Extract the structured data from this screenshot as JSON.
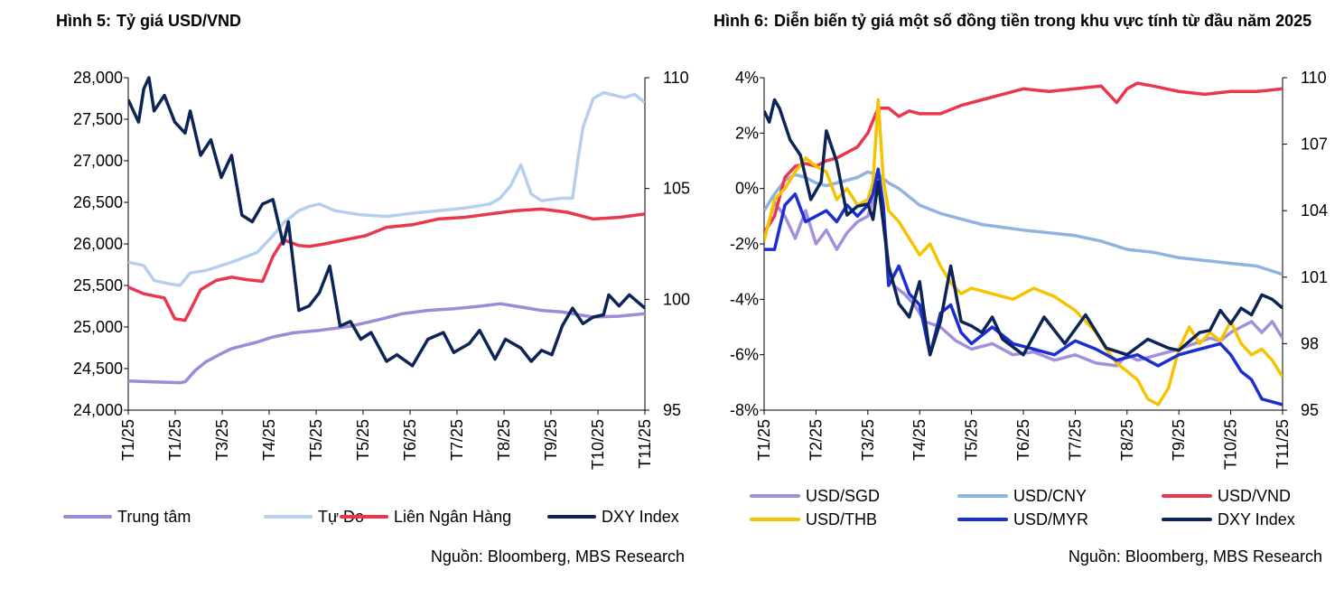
{
  "figure1": {
    "label": "Hình 5:",
    "title": "Tỷ giá USD/VND",
    "source": "Nguồn: Bloomberg, MBS Research"
  },
  "figure2": {
    "label": "Hình 6:",
    "title": "Diễn biến tỷ giá một số đồng tiền trong khu vực tính từ đầu năm 2025",
    "source": "Nguồn: Bloomberg, MBS Research"
  },
  "chart_data": [
    {
      "type": "line",
      "title": "Tỷ giá USD/VND",
      "ylim": [
        24000,
        28000
      ],
      "y_ticks": [
        24000,
        24500,
        25000,
        25500,
        26000,
        26500,
        27000,
        27500,
        28000
      ],
      "y_tick_labels": [
        "24,000",
        "24,500",
        "25,000",
        "25,500",
        "26,000",
        "26,500",
        "27,000",
        "27,500",
        "28,000"
      ],
      "y2lim": [
        95,
        110
      ],
      "y2_ticks": [
        95,
        100,
        105,
        110
      ],
      "y2_tick_labels": [
        "95",
        "100",
        "105",
        "110"
      ],
      "x_tick_labels": [
        "T1/25",
        "T1/25",
        "T3/25",
        "T4/25",
        "T5/25",
        "T5/25",
        "T6/25",
        "T7/25",
        "T8/25",
        "T9/25",
        "T10/25",
        "T11/25"
      ],
      "legend": "bottom",
      "series": [
        {
          "name": "Trung tâm",
          "color": "#9b8bd9",
          "axis": "left",
          "x": [
            0,
            0.05,
            0.1,
            0.11,
            0.13,
            0.15,
            0.18,
            0.2,
            0.25,
            0.28,
            0.32,
            0.37,
            0.43,
            0.48,
            0.53,
            0.58,
            0.63,
            0.68,
            0.72,
            0.76,
            0.8,
            0.84,
            0.9,
            0.95,
            1.0
          ],
          "y": [
            24350,
            24340,
            24330,
            24340,
            24480,
            24580,
            24680,
            24740,
            24820,
            24880,
            24930,
            24960,
            25010,
            25080,
            25160,
            25200,
            25220,
            25250,
            25280,
            25240,
            25200,
            25180,
            25120,
            25130,
            25160
          ]
        },
        {
          "name": "Tự Do",
          "color": "#b5cfec",
          "axis": "left",
          "x": [
            0,
            0.03,
            0.05,
            0.08,
            0.1,
            0.12,
            0.15,
            0.17,
            0.2,
            0.23,
            0.25,
            0.28,
            0.3,
            0.33,
            0.35,
            0.37,
            0.4,
            0.45,
            0.5,
            0.55,
            0.6,
            0.65,
            0.7,
            0.72,
            0.74,
            0.76,
            0.78,
            0.8,
            0.84,
            0.86,
            0.87,
            0.88,
            0.9,
            0.92,
            0.94,
            0.96,
            0.98,
            1.0
          ],
          "y": [
            25780,
            25740,
            25560,
            25520,
            25500,
            25650,
            25680,
            25720,
            25780,
            25850,
            25900,
            26100,
            26250,
            26400,
            26450,
            26480,
            26400,
            26350,
            26330,
            26370,
            26400,
            26430,
            26480,
            26550,
            26700,
            26950,
            26600,
            26520,
            26550,
            26550,
            27000,
            27400,
            27750,
            27820,
            27790,
            27760,
            27800,
            27700
          ]
        },
        {
          "name": "Liên Ngân Hàng",
          "color": "#e8374f",
          "axis": "left",
          "x": [
            0,
            0.03,
            0.07,
            0.09,
            0.11,
            0.12,
            0.14,
            0.17,
            0.2,
            0.23,
            0.26,
            0.28,
            0.3,
            0.33,
            0.35,
            0.38,
            0.42,
            0.46,
            0.5,
            0.55,
            0.6,
            0.65,
            0.7,
            0.75,
            0.8,
            0.85,
            0.9,
            0.95,
            1.0
          ],
          "y": [
            25480,
            25400,
            25350,
            25100,
            25080,
            25200,
            25450,
            25560,
            25600,
            25570,
            25550,
            25850,
            26050,
            25980,
            25970,
            26000,
            26050,
            26100,
            26200,
            26230,
            26300,
            26320,
            26360,
            26400,
            26420,
            26380,
            26300,
            26320,
            26360
          ]
        },
        {
          "name": "DXY Index",
          "color": "#0d2456",
          "axis": "right",
          "x": [
            0,
            0.02,
            0.03,
            0.04,
            0.05,
            0.07,
            0.09,
            0.11,
            0.12,
            0.14,
            0.16,
            0.18,
            0.2,
            0.22,
            0.24,
            0.26,
            0.28,
            0.3,
            0.31,
            0.33,
            0.35,
            0.37,
            0.39,
            0.41,
            0.43,
            0.45,
            0.47,
            0.5,
            0.52,
            0.55,
            0.58,
            0.61,
            0.63,
            0.66,
            0.68,
            0.71,
            0.73,
            0.76,
            0.78,
            0.8,
            0.82,
            0.84,
            0.86,
            0.88,
            0.9,
            0.92,
            0.93,
            0.95,
            0.97,
            1.0
          ],
          "y": [
            109.0,
            108.0,
            109.5,
            110.0,
            108.5,
            109.2,
            108.0,
            107.5,
            108.5,
            106.5,
            107.2,
            105.5,
            106.5,
            103.8,
            103.5,
            104.3,
            104.5,
            102.5,
            103.5,
            99.5,
            99.7,
            100.3,
            101.5,
            98.8,
            99.0,
            98.2,
            98.5,
            97.2,
            97.5,
            97.0,
            98.2,
            98.5,
            97.6,
            98.0,
            98.6,
            97.3,
            98.2,
            97.8,
            97.2,
            97.7,
            97.5,
            98.8,
            99.6,
            98.9,
            99.2,
            99.3,
            100.2,
            99.7,
            100.2,
            99.6
          ]
        }
      ]
    },
    {
      "type": "line",
      "title": "Diễn biến tỷ giá một số đồng tiền trong khu vực tính từ đầu năm 2025",
      "ylim": [
        -8,
        4
      ],
      "y_ticks": [
        -8,
        -6,
        -4,
        -2,
        0,
        2,
        4
      ],
      "y_tick_labels": [
        "-8%",
        "-6%",
        "-4%",
        "-2%",
        "0%",
        "2%",
        "4%"
      ],
      "y2lim": [
        95,
        110
      ],
      "y2_ticks": [
        95,
        98,
        101,
        104,
        107,
        110
      ],
      "y2_tick_labels": [
        "95",
        "98",
        "101",
        "104",
        "107",
        "110"
      ],
      "x_tick_labels": [
        "T1/25",
        "T2/25",
        "T3/25",
        "T4/25",
        "T5/25",
        "T6/25",
        "T7/25",
        "T8/25",
        "T9/25",
        "T10/25",
        "T11/25"
      ],
      "legend": "bottom",
      "series": [
        {
          "name": "USD/SGD",
          "color": "#a48fdc",
          "axis": "left",
          "x": [
            0,
            0.02,
            0.04,
            0.06,
            0.08,
            0.1,
            0.12,
            0.14,
            0.16,
            0.18,
            0.2,
            0.22,
            0.23,
            0.24,
            0.25,
            0.27,
            0.29,
            0.31,
            0.34,
            0.37,
            0.4,
            0.44,
            0.48,
            0.52,
            0.56,
            0.6,
            0.64,
            0.68,
            0.7,
            0.72,
            0.76,
            0.8,
            0.83,
            0.86,
            0.88,
            0.9,
            0.92,
            0.94,
            0.96,
            0.98,
            1.0
          ],
          "y": [
            -1.8,
            -0.5,
            -1.0,
            -1.8,
            -0.8,
            -2.0,
            -1.5,
            -2.2,
            -1.6,
            -1.2,
            -1.0,
            0.2,
            -0.8,
            -2.8,
            -3.5,
            -3.8,
            -4.2,
            -4.8,
            -5.0,
            -5.5,
            -5.8,
            -5.6,
            -6.0,
            -5.9,
            -6.2,
            -6.0,
            -6.3,
            -6.4,
            -6.0,
            -6.2,
            -6.0,
            -5.8,
            -5.6,
            -5.4,
            -5.5,
            -5.2,
            -5.0,
            -4.8,
            -5.2,
            -4.8,
            -5.4
          ]
        },
        {
          "name": "USD/CNY",
          "color": "#8fb4e0",
          "axis": "left",
          "x": [
            0,
            0.02,
            0.04,
            0.06,
            0.08,
            0.1,
            0.12,
            0.14,
            0.16,
            0.18,
            0.2,
            0.22,
            0.24,
            0.26,
            0.28,
            0.3,
            0.34,
            0.38,
            0.42,
            0.46,
            0.5,
            0.55,
            0.6,
            0.65,
            0.7,
            0.75,
            0.8,
            0.85,
            0.9,
            0.95,
            1.0
          ],
          "y": [
            -0.8,
            -0.2,
            0.3,
            0.5,
            0.4,
            0.2,
            0.1,
            0.2,
            0.3,
            0.4,
            0.6,
            0.5,
            0.2,
            0.0,
            -0.3,
            -0.6,
            -0.9,
            -1.1,
            -1.3,
            -1.4,
            -1.5,
            -1.6,
            -1.7,
            -1.9,
            -2.2,
            -2.3,
            -2.5,
            -2.6,
            -2.7,
            -2.8,
            -3.1
          ]
        },
        {
          "name": "USD/VND",
          "color": "#e8374f",
          "axis": "left",
          "x": [
            0,
            0.02,
            0.04,
            0.06,
            0.08,
            0.1,
            0.12,
            0.14,
            0.16,
            0.18,
            0.2,
            0.22,
            0.24,
            0.26,
            0.28,
            0.3,
            0.34,
            0.38,
            0.42,
            0.46,
            0.5,
            0.55,
            0.6,
            0.65,
            0.68,
            0.7,
            0.72,
            0.75,
            0.8,
            0.85,
            0.9,
            0.95,
            1.0
          ],
          "y": [
            -1.6,
            -1.0,
            0.4,
            0.8,
            0.9,
            0.8,
            1.0,
            1.1,
            1.3,
            1.5,
            2.0,
            2.9,
            2.9,
            2.6,
            2.8,
            2.7,
            2.7,
            3.0,
            3.2,
            3.4,
            3.6,
            3.5,
            3.6,
            3.7,
            3.1,
            3.6,
            3.8,
            3.7,
            3.5,
            3.4,
            3.5,
            3.5,
            3.6
          ]
        },
        {
          "name": "USD/THB",
          "color": "#f5c400",
          "axis": "left",
          "x": [
            0,
            0.02,
            0.04,
            0.06,
            0.08,
            0.1,
            0.12,
            0.14,
            0.16,
            0.18,
            0.2,
            0.21,
            0.22,
            0.23,
            0.24,
            0.26,
            0.28,
            0.3,
            0.32,
            0.34,
            0.36,
            0.38,
            0.4,
            0.44,
            0.48,
            0.52,
            0.56,
            0.6,
            0.64,
            0.66,
            0.68,
            0.72,
            0.74,
            0.76,
            0.78,
            0.8,
            0.82,
            0.84,
            0.86,
            0.88,
            0.9,
            0.92,
            0.94,
            0.96,
            0.98,
            1.0
          ],
          "y": [
            -1.9,
            -0.4,
            0.0,
            0.6,
            1.1,
            0.8,
            0.6,
            -0.4,
            0.0,
            -0.6,
            -0.4,
            0.2,
            3.2,
            0.3,
            -0.8,
            -1.2,
            -1.8,
            -2.4,
            -2.0,
            -2.8,
            -3.4,
            -3.8,
            -3.6,
            -3.8,
            -4.0,
            -3.6,
            -3.9,
            -4.4,
            -5.2,
            -5.8,
            -6.3,
            -6.9,
            -7.6,
            -7.8,
            -7.2,
            -5.8,
            -5.0,
            -5.6,
            -5.2,
            -5.5,
            -4.8,
            -5.6,
            -6.0,
            -5.8,
            -6.2,
            -6.8
          ]
        },
        {
          "name": "USD/MYR",
          "color": "#1a2ed1",
          "axis": "left",
          "x": [
            0,
            0.02,
            0.04,
            0.06,
            0.08,
            0.1,
            0.12,
            0.14,
            0.16,
            0.18,
            0.2,
            0.21,
            0.22,
            0.23,
            0.24,
            0.26,
            0.28,
            0.3,
            0.32,
            0.34,
            0.36,
            0.38,
            0.4,
            0.44,
            0.48,
            0.52,
            0.56,
            0.6,
            0.64,
            0.68,
            0.72,
            0.76,
            0.8,
            0.84,
            0.88,
            0.9,
            0.92,
            0.94,
            0.96,
            0.98,
            1.0
          ],
          "y": [
            -2.2,
            -2.2,
            -0.6,
            -0.2,
            -1.2,
            -1.0,
            -0.8,
            -1.2,
            -0.6,
            -1.0,
            -0.6,
            -0.2,
            0.7,
            -0.6,
            -3.5,
            -2.8,
            -3.8,
            -4.2,
            -6.0,
            -4.5,
            -4.2,
            -5.2,
            -5.6,
            -5.0,
            -5.6,
            -5.8,
            -6.0,
            -5.5,
            -5.8,
            -6.2,
            -6.0,
            -6.4,
            -6.0,
            -5.8,
            -5.6,
            -6.0,
            -6.6,
            -6.9,
            -7.6,
            -7.7,
            -7.8
          ]
        },
        {
          "name": "DXY Index",
          "color": "#0d2456",
          "axis": "right",
          "x": [
            0,
            0.01,
            0.02,
            0.03,
            0.05,
            0.07,
            0.09,
            0.11,
            0.12,
            0.14,
            0.16,
            0.18,
            0.2,
            0.21,
            0.22,
            0.24,
            0.26,
            0.28,
            0.3,
            0.32,
            0.34,
            0.36,
            0.38,
            0.4,
            0.42,
            0.44,
            0.46,
            0.5,
            0.54,
            0.58,
            0.62,
            0.66,
            0.7,
            0.74,
            0.78,
            0.8,
            0.82,
            0.84,
            0.86,
            0.88,
            0.9,
            0.92,
            0.94,
            0.96,
            0.98,
            1.0
          ],
          "y": [
            108.5,
            108.0,
            109.0,
            108.6,
            107.2,
            106.5,
            104.5,
            105.3,
            107.6,
            106.2,
            103.8,
            104.2,
            104.3,
            103.6,
            105.3,
            101.5,
            99.8,
            99.2,
            100.8,
            97.5,
            99.0,
            101.5,
            99.0,
            98.8,
            98.5,
            99.2,
            98.2,
            97.5,
            99.2,
            98.0,
            99.3,
            97.8,
            97.5,
            98.2,
            97.8,
            97.7,
            98.1,
            98.5,
            98.6,
            99.5,
            98.9,
            99.6,
            99.3,
            100.2,
            100.0,
            99.6
          ]
        }
      ]
    }
  ]
}
